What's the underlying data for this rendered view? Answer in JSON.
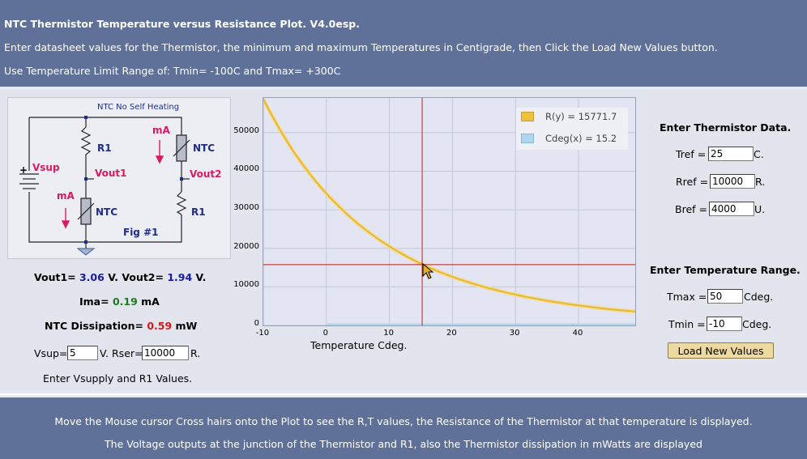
{
  "header": {
    "title": "NTC Thermistor Temperature versus Resistance Plot. V4.0esp.",
    "instructions": "Enter datasheet values for the Thermistor, the minimum and maximum Temperatures in Centigrade, then Click the Load New Values button.",
    "limit_note": "Use Temperature Limit Range of: Tmin= -100C and Tmax= +300C"
  },
  "circuit": {
    "title": "NTC No Self Heating",
    "vsup": "Vsup",
    "r1_top": "R1",
    "r1_bottom": "R1",
    "vout1": "Vout1",
    "vout2": "Vout2",
    "ma_left": "mA",
    "ma_right": "mA",
    "ntc_left": "NTC",
    "ntc_right": "NTC",
    "fig": "Fig #1",
    "plus": "+"
  },
  "results": {
    "vout1_label": "Vout1=",
    "vout1_value": "3.06",
    "vout1_unit": "V.",
    "vout2_label": "Vout2=",
    "vout2_value": "1.94",
    "vout2_unit": "V.",
    "ima_label": "Ima=",
    "ima_value": "0.19",
    "ima_unit": "mA",
    "diss_label": "NTC Dissipation=",
    "diss_value": "0.59",
    "diss_unit": "mW"
  },
  "supply": {
    "vsup_label": "Vsup=",
    "vsup_value": "5",
    "vsup_unit": "V.",
    "rser_label": "Rser=",
    "rser_value": "10000",
    "rser_unit": "R.",
    "hint": "Enter Vsupply and R1 Values."
  },
  "thermistor": {
    "heading": "Enter Thermistor Data.",
    "tref_label": "Tref =",
    "tref_value": "25",
    "tref_unit": "C.",
    "rref_label": "Rref =",
    "rref_value": "10000",
    "rref_unit": "R.",
    "bref_label": "Bref =",
    "bref_value": "4000",
    "bref_unit": "U."
  },
  "range": {
    "heading": "Enter Temperature Range.",
    "tmax_label": "Tmax =",
    "tmax_value": "50",
    "tmax_unit": "Cdeg.",
    "tmin_label": "Tmin =",
    "tmin_value": "-10",
    "tmin_unit": "Cdeg.",
    "load_button": "Load New Values"
  },
  "footer": {
    "line1": "Move the Mouse cursor Cross hairs onto the Plot to see the R,T values, the Resistance of the Thermistor at that temperature is displayed.",
    "line2": "The Voltage outputs at the junction of the Thermistor and R1, also the Thermistor dissipation in mWatts are displayed"
  },
  "colors": {
    "header_bg": "#5f7198",
    "curve": "#e8b830",
    "crosshair": "#c84040",
    "legend_r": "#f0c040",
    "legend_c": "#aed6f0"
  },
  "chart_data": {
    "type": "line",
    "xlabel": "Temperature Cdeg.",
    "ylabel": "",
    "xlim": [
      -10,
      49
    ],
    "ylim": [
      0,
      59000
    ],
    "xticks": [
      "-10",
      "0",
      "10",
      "20",
      "30",
      "40"
    ],
    "yticks": [
      "0",
      "10000",
      "20000",
      "30000",
      "40000",
      "50000"
    ],
    "grid": true,
    "legend": [
      {
        "label": "R(y) = 15771.7"
      },
      {
        "label": "Cdeg(x) = 15.2"
      }
    ],
    "crosshair": {
      "x": 15.2,
      "y": 15771.7
    },
    "series": [
      {
        "name": "R(y)",
        "x": [
          -10,
          -5,
          0,
          5,
          10,
          15,
          20,
          25,
          30,
          35,
          40,
          45,
          49
        ],
        "values": [
          58700,
          44600,
          34200,
          26400,
          20500,
          16000,
          12600,
          10000,
          8000,
          6400,
          5200,
          4200,
          3600
        ]
      },
      {
        "name": "Cdeg(x)",
        "x": [
          0,
          49
        ],
        "values": [
          0,
          0
        ]
      }
    ]
  }
}
